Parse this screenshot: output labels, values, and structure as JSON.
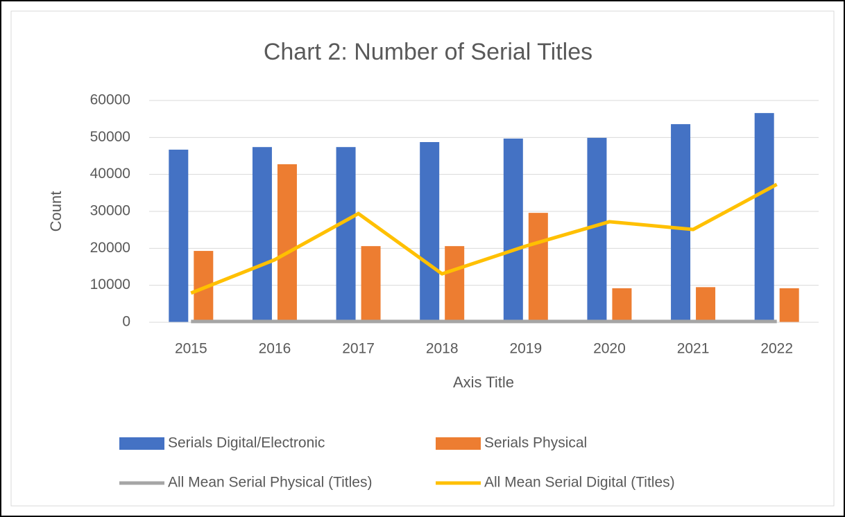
{
  "chart_data": {
    "type": "combo",
    "title": "Chart 2: Number of Serial Titles",
    "x_label": "Axis Title",
    "y_label": "Count",
    "categories": [
      "2015",
      "2016",
      "2017",
      "2018",
      "2019",
      "2020",
      "2021",
      "2022"
    ],
    "series": [
      {
        "name": "Serials Digital/Electronic",
        "type": "bar",
        "color": "#4472c4",
        "values": [
          46700,
          47400,
          47400,
          48750,
          49700,
          49900,
          53600,
          56600
        ]
      },
      {
        "name": "Serials Physical",
        "type": "bar",
        "color": "#ed7d31",
        "values": [
          19300,
          42750,
          20600,
          20600,
          29600,
          9200,
          9500,
          9200
        ]
      },
      {
        "name": "All Mean Serial Physical (Titles)",
        "type": "line",
        "color": "#a5a5a5",
        "values": [
          200,
          200,
          200,
          200,
          200,
          200,
          200,
          200
        ]
      },
      {
        "name": "All Mean Serial Digital (Titles)",
        "type": "line",
        "color": "#ffc000",
        "values": [
          7900,
          16900,
          29400,
          13100,
          20600,
          27200,
          25100,
          37300
        ]
      }
    ],
    "ylim": [
      0,
      60000
    ],
    "yticks": [
      0,
      10000,
      20000,
      30000,
      40000,
      50000,
      60000
    ],
    "grid": true,
    "legend": "bottom"
  }
}
